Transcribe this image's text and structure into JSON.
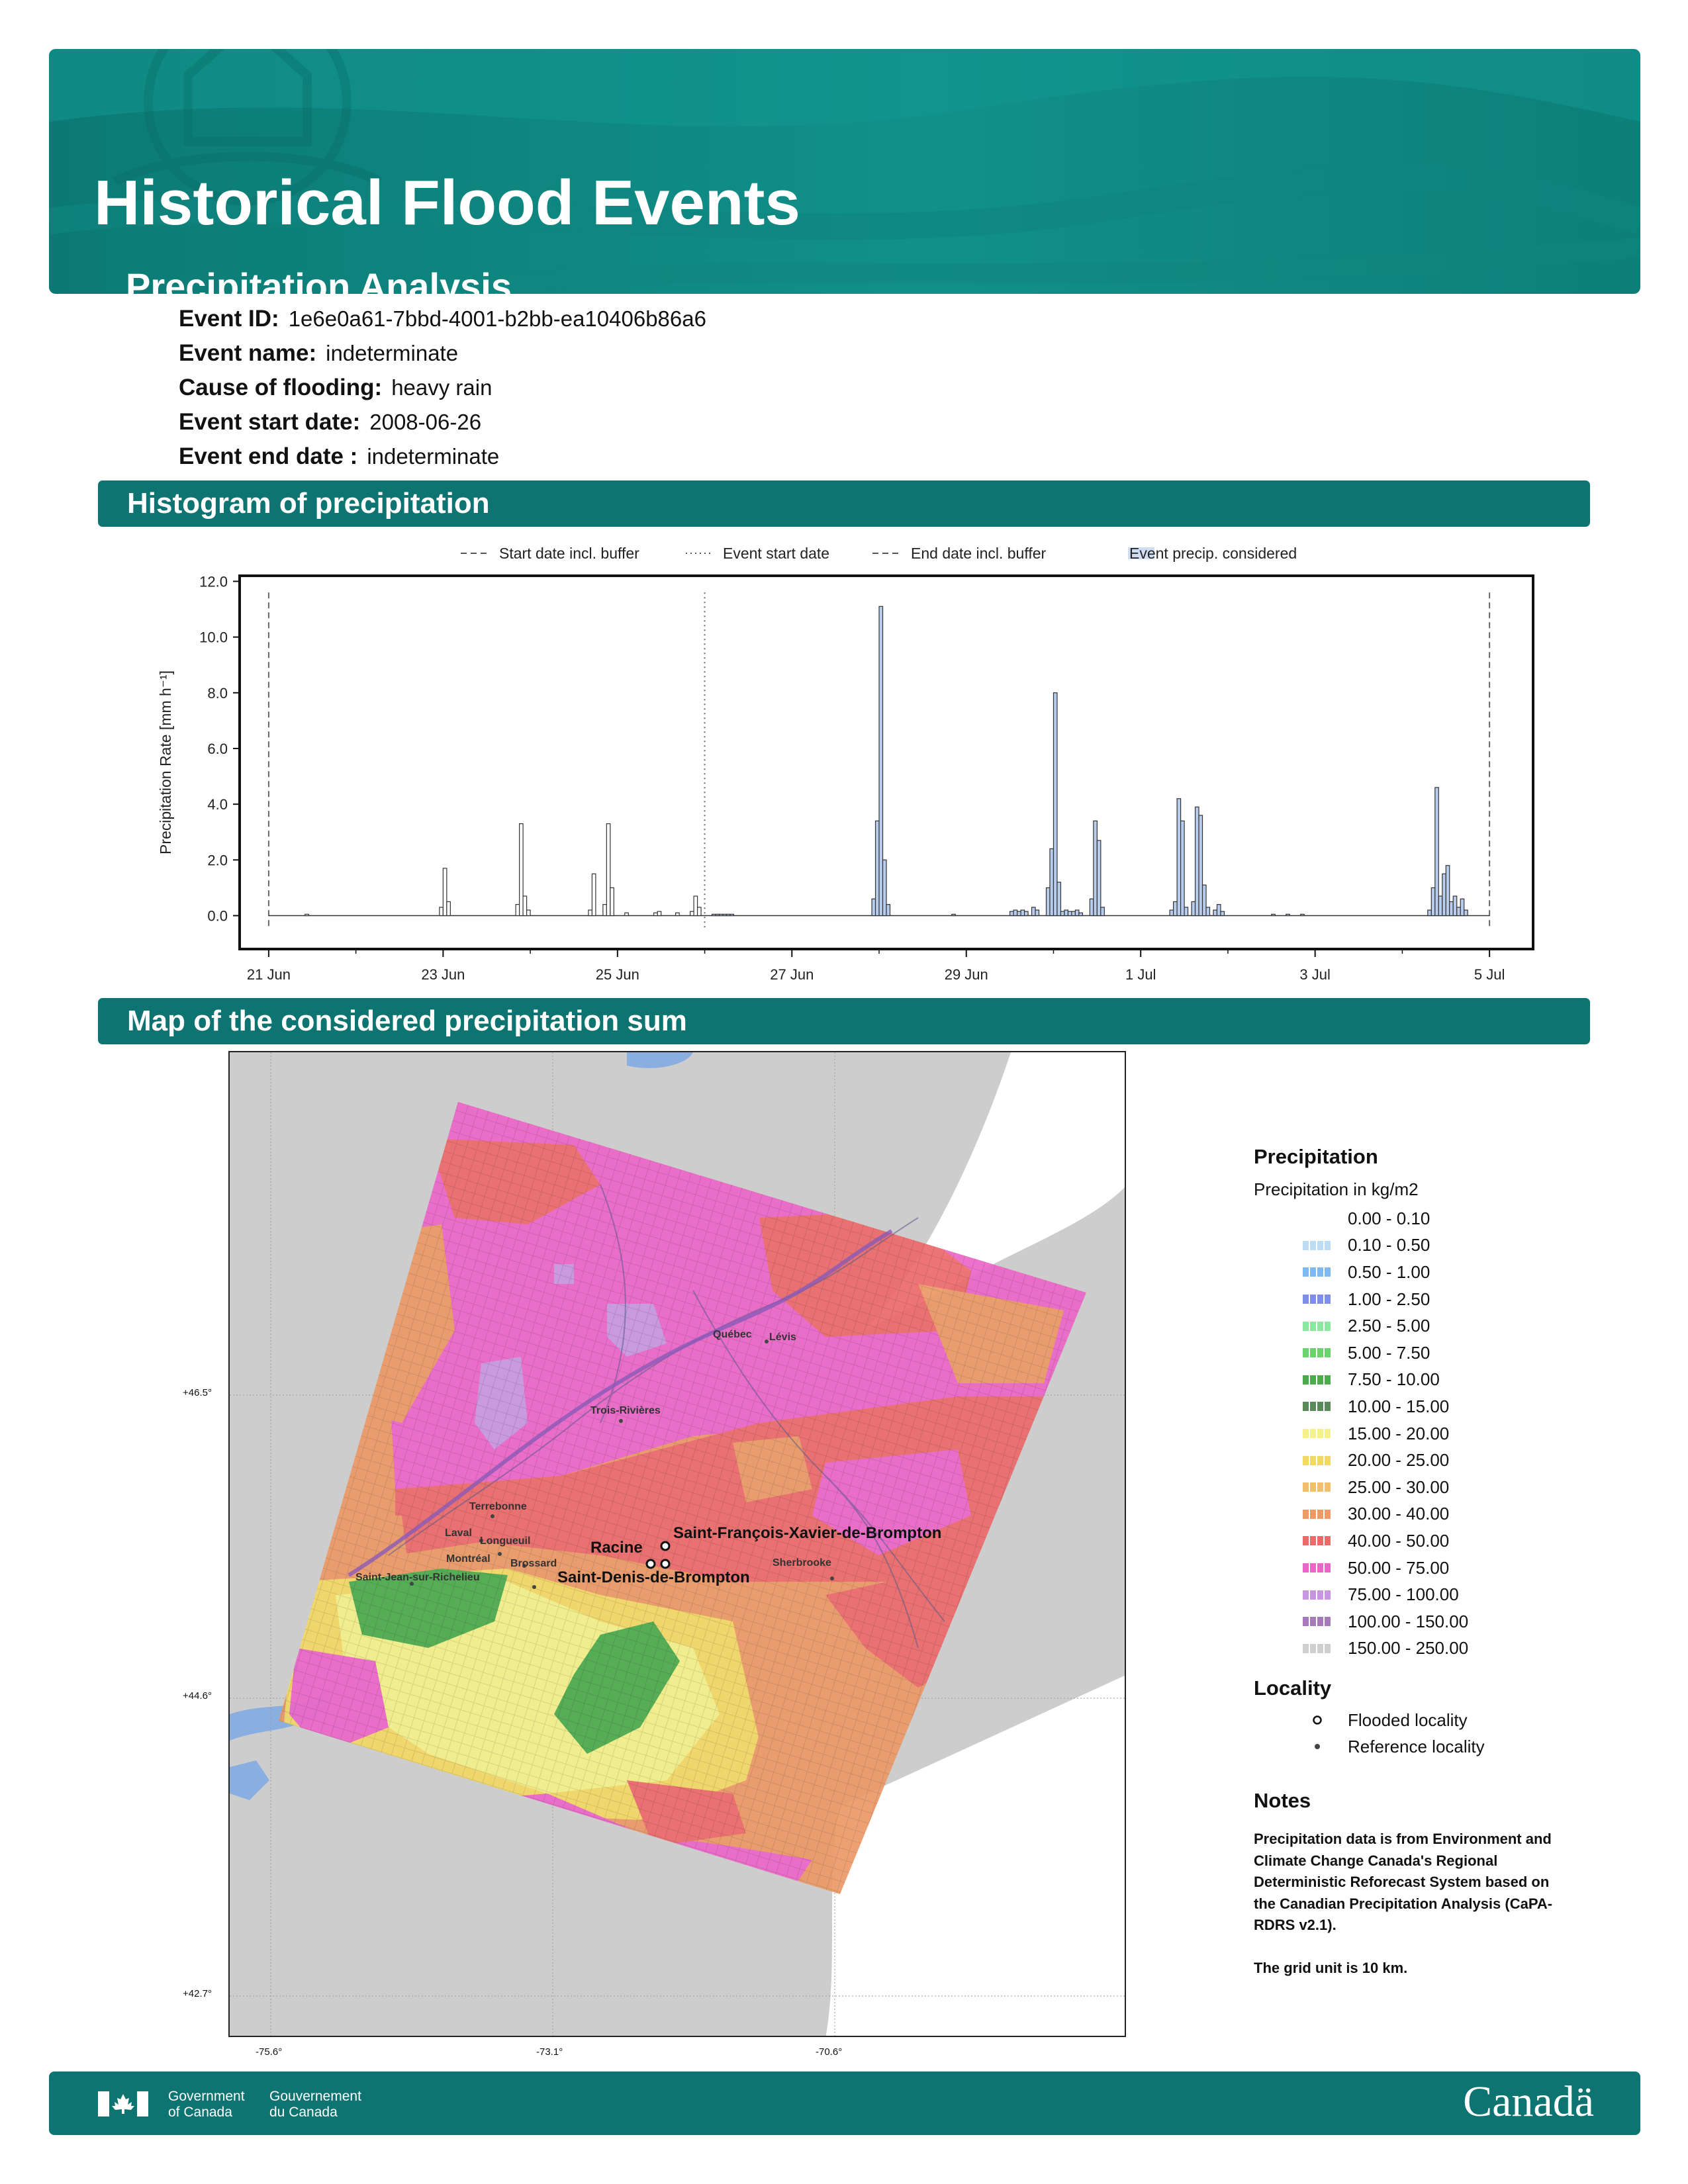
{
  "header": {
    "title": "Historical Flood Events",
    "subtitle": "Precipitation Analysis"
  },
  "event": [
    {
      "label": "Event ID:",
      "value": "1e6e0a61-7bbd-4001-b2bb-ea10406b86a6"
    },
    {
      "label": "Event name:",
      "value": "indeterminate"
    },
    {
      "label": "Cause of flooding:",
      "value": "heavy rain"
    },
    {
      "label": "Event start date:",
      "value": "2008-06-26"
    },
    {
      "label": "Event end date :",
      "value": "indeterminate"
    }
  ],
  "sections": {
    "histogram": "Histogram of precipitation",
    "map": "Map of the considered precipitation sum"
  },
  "chart_data": {
    "type": "bar",
    "title": "",
    "ylabel": "Precipitation Rate [mm h⁻¹]",
    "xlabel": "",
    "ylim": [
      -1.2,
      12.2
    ],
    "yticks": [
      0,
      2,
      4,
      6,
      8,
      10,
      12
    ],
    "ytick_labels": [
      "0.0",
      "2.0",
      "4.0",
      "6.0",
      "8.0",
      "10.0",
      "12.0"
    ],
    "x_range": [
      "2008-06-20T16:00",
      "2008-07-05T12:00"
    ],
    "xtick_labels": [
      {
        "date": "2008-06-21",
        "label": "21 Jun"
      },
      {
        "date": "2008-06-23",
        "label": "23 Jun"
      },
      {
        "date": "2008-06-25",
        "label": "25 Jun"
      },
      {
        "date": "2008-06-27",
        "label": "27 Jun"
      },
      {
        "date": "2008-06-29",
        "label": "29 Jun"
      },
      {
        "date": "2008-07-01",
        "label": "1 Jul"
      },
      {
        "date": "2008-07-03",
        "label": "3 Jul"
      },
      {
        "date": "2008-07-05",
        "label": "5 Jul"
      }
    ],
    "legend": [
      {
        "label": "Start date incl. buffer",
        "style": "dashed"
      },
      {
        "label": "Event start date",
        "style": "dotted"
      },
      {
        "label": "End date incl. buffer",
        "style": "dashed"
      },
      {
        "label": "Event precip. considered",
        "style": "patch"
      }
    ],
    "legend_placement": "top-center",
    "vlines": [
      {
        "x": "2008-06-21T00:00",
        "style": "dashed"
      },
      {
        "x": "2008-06-26T00:00",
        "style": "dotted"
      },
      {
        "x": "2008-07-05T00:00",
        "style": "dashed"
      }
    ],
    "considered_window": [
      "2008-06-26T00:00",
      "2008-07-05T00:00"
    ],
    "bars": [
      {
        "x": "2008-06-21T10:00",
        "y": 0.05
      },
      {
        "x": "2008-06-22T23:00",
        "y": 0.3
      },
      {
        "x": "2008-06-23T00:00",
        "y": 1.7
      },
      {
        "x": "2008-06-23T01:00",
        "y": 0.5
      },
      {
        "x": "2008-06-23T20:00",
        "y": 0.4
      },
      {
        "x": "2008-06-23T21:00",
        "y": 3.3
      },
      {
        "x": "2008-06-23T22:00",
        "y": 0.7
      },
      {
        "x": "2008-06-23T23:00",
        "y": 0.2
      },
      {
        "x": "2008-06-24T16:00",
        "y": 0.2
      },
      {
        "x": "2008-06-24T17:00",
        "y": 1.5
      },
      {
        "x": "2008-06-24T20:00",
        "y": 0.4
      },
      {
        "x": "2008-06-24T21:00",
        "y": 3.3
      },
      {
        "x": "2008-06-24T22:00",
        "y": 1.0
      },
      {
        "x": "2008-06-25T02:00",
        "y": 0.1
      },
      {
        "x": "2008-06-25T10:00",
        "y": 0.1
      },
      {
        "x": "2008-06-25T11:00",
        "y": 0.15
      },
      {
        "x": "2008-06-25T16:00",
        "y": 0.1
      },
      {
        "x": "2008-06-25T20:00",
        "y": 0.15
      },
      {
        "x": "2008-06-25T21:00",
        "y": 0.7
      },
      {
        "x": "2008-06-25T22:00",
        "y": 0.3
      },
      {
        "x": "2008-06-26T02:00",
        "y": 0.05
      },
      {
        "x": "2008-06-26T03:00",
        "y": 0.05
      },
      {
        "x": "2008-06-26T04:00",
        "y": 0.05
      },
      {
        "x": "2008-06-26T05:00",
        "y": 0.05
      },
      {
        "x": "2008-06-26T06:00",
        "y": 0.05
      },
      {
        "x": "2008-06-26T07:00",
        "y": 0.05
      },
      {
        "x": "2008-06-27T22:00",
        "y": 0.6
      },
      {
        "x": "2008-06-27T23:00",
        "y": 3.4
      },
      {
        "x": "2008-06-28T00:00",
        "y": 11.1
      },
      {
        "x": "2008-06-28T01:00",
        "y": 2.0
      },
      {
        "x": "2008-06-28T02:00",
        "y": 0.4
      },
      {
        "x": "2008-06-28T20:00",
        "y": 0.05
      },
      {
        "x": "2008-06-29T12:00",
        "y": 0.15
      },
      {
        "x": "2008-06-29T13:00",
        "y": 0.2
      },
      {
        "x": "2008-06-29T14:00",
        "y": 0.15
      },
      {
        "x": "2008-06-29T15:00",
        "y": 0.2
      },
      {
        "x": "2008-06-29T16:00",
        "y": 0.15
      },
      {
        "x": "2008-06-29T18:00",
        "y": 0.3
      },
      {
        "x": "2008-06-29T19:00",
        "y": 0.2
      },
      {
        "x": "2008-06-29T22:00",
        "y": 1.0
      },
      {
        "x": "2008-06-29T23:00",
        "y": 2.4
      },
      {
        "x": "2008-06-30T00:00",
        "y": 8.0
      },
      {
        "x": "2008-06-30T01:00",
        "y": 1.2
      },
      {
        "x": "2008-06-30T02:00",
        "y": 0.15
      },
      {
        "x": "2008-06-30T03:00",
        "y": 0.2
      },
      {
        "x": "2008-06-30T04:00",
        "y": 0.15
      },
      {
        "x": "2008-06-30T05:00",
        "y": 0.15
      },
      {
        "x": "2008-06-30T06:00",
        "y": 0.2
      },
      {
        "x": "2008-06-30T07:00",
        "y": 0.1
      },
      {
        "x": "2008-06-30T10:00",
        "y": 0.6
      },
      {
        "x": "2008-06-30T11:00",
        "y": 3.4
      },
      {
        "x": "2008-06-30T12:00",
        "y": 2.7
      },
      {
        "x": "2008-06-30T13:00",
        "y": 0.3
      },
      {
        "x": "2008-07-01T08:00",
        "y": 0.2
      },
      {
        "x": "2008-07-01T09:00",
        "y": 0.5
      },
      {
        "x": "2008-07-01T10:00",
        "y": 4.2
      },
      {
        "x": "2008-07-01T11:00",
        "y": 3.4
      },
      {
        "x": "2008-07-01T12:00",
        "y": 0.3
      },
      {
        "x": "2008-07-01T14:00",
        "y": 0.5
      },
      {
        "x": "2008-07-01T15:00",
        "y": 3.9
      },
      {
        "x": "2008-07-01T16:00",
        "y": 3.6
      },
      {
        "x": "2008-07-01T17:00",
        "y": 1.1
      },
      {
        "x": "2008-07-01T18:00",
        "y": 0.3
      },
      {
        "x": "2008-07-01T20:00",
        "y": 0.2
      },
      {
        "x": "2008-07-01T21:00",
        "y": 0.4
      },
      {
        "x": "2008-07-01T22:00",
        "y": 0.15
      },
      {
        "x": "2008-07-02T12:00",
        "y": 0.05
      },
      {
        "x": "2008-07-02T16:00",
        "y": 0.05
      },
      {
        "x": "2008-07-02T20:00",
        "y": 0.05
      },
      {
        "x": "2008-07-04T07:00",
        "y": 0.2
      },
      {
        "x": "2008-07-04T08:00",
        "y": 1.0
      },
      {
        "x": "2008-07-04T09:00",
        "y": 4.6
      },
      {
        "x": "2008-07-04T10:00",
        "y": 0.7
      },
      {
        "x": "2008-07-04T11:00",
        "y": 1.5
      },
      {
        "x": "2008-07-04T12:00",
        "y": 1.8
      },
      {
        "x": "2008-07-04T13:00",
        "y": 0.5
      },
      {
        "x": "2008-07-04T14:00",
        "y": 0.7
      },
      {
        "x": "2008-07-04T15:00",
        "y": 0.3
      },
      {
        "x": "2008-07-04T16:00",
        "y": 0.6
      },
      {
        "x": "2008-07-04T17:00",
        "y": 0.2
      }
    ]
  },
  "map": {
    "lat_labels": [
      "+46.5°",
      "+44.6°",
      "+42.7°"
    ],
    "lon_labels": [
      "-75.6°",
      "-73.1°",
      "-70.6°"
    ],
    "towns": [
      "Québec",
      "Lévis",
      "Trois-Rivières",
      "Terrebonne",
      "Laval",
      "Longueuil",
      "Montréal",
      "Brossard",
      "Saint-Jean-sur-Richelieu",
      "Sherbrooke"
    ],
    "flooded": [
      "Saint-François-Xavier-de-Brompton",
      "Racine",
      "Saint-Denis-de-Brompton"
    ]
  },
  "legend": {
    "title": "Precipitation",
    "subtitle": "Precipitation in kg/m2",
    "classes": [
      {
        "label": "0.00 - 0.10",
        "color": "#ffffff"
      },
      {
        "label": "0.10 - 0.50",
        "color": "#bcdcf4"
      },
      {
        "label": "0.50 - 1.00",
        "color": "#7fb9ef"
      },
      {
        "label": "1.00 - 2.50",
        "color": "#7f8ee9"
      },
      {
        "label": "2.50 - 5.00",
        "color": "#8ce8a0"
      },
      {
        "label": "5.00 - 7.50",
        "color": "#6cd36c"
      },
      {
        "label": "7.50 - 10.00",
        "color": "#4cab4c"
      },
      {
        "label": "10.00 - 15.00",
        "color": "#5a8a5a"
      },
      {
        "label": "15.00 - 20.00",
        "color": "#f4f08a"
      },
      {
        "label": "20.00 - 25.00",
        "color": "#f2d865"
      },
      {
        "label": "25.00 - 30.00",
        "color": "#f0c070"
      },
      {
        "label": "30.00 - 40.00",
        "color": "#ec9a66"
      },
      {
        "label": "40.00 - 50.00",
        "color": "#ec6a6a"
      },
      {
        "label": "50.00 - 75.00",
        "color": "#ec66c8"
      },
      {
        "label": "75.00 - 100.00",
        "color": "#c896e0"
      },
      {
        "label": "100.00 - 150.00",
        "color": "#a67ab8"
      },
      {
        "label": "150.00 - 250.00",
        "color": "#cfcfcf"
      }
    ],
    "locality_title": "Locality",
    "locality": [
      {
        "label": "Flooded locality",
        "symbol": "open-circle"
      },
      {
        "label": "Reference locality",
        "symbol": "dot"
      }
    ],
    "notes_title": "Notes",
    "notes_lines": [
      "Precipitation data is from Environment and",
      "Climate Change Canada's Regional",
      "Deterministic Reforecast System based on",
      "the Canadian Precipitation Analysis (CaPA-",
      "RDRS v2.1).",
      "",
      "The grid unit is 10 km."
    ]
  },
  "footer": {
    "gov_en_1": "Government",
    "gov_en_2": "of Canada",
    "gov_fr_1": "Gouvernement",
    "gov_fr_2": "du Canada",
    "wordmark": "Canadä"
  }
}
